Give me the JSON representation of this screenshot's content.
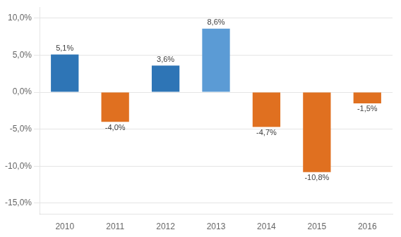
{
  "chart_data": {
    "type": "bar",
    "categories": [
      "2010",
      "2011",
      "2012",
      "2013",
      "2014",
      "2015",
      "2016"
    ],
    "values": [
      5.1,
      -4.0,
      3.6,
      8.6,
      -4.7,
      -10.8,
      -1.5
    ],
    "value_labels": [
      "5,1%",
      "-4,0%",
      "3,6%",
      "8,6%",
      "-4,7%",
      "-10,8%",
      "-1,5%"
    ],
    "colors": [
      "#2E75B6",
      "#E07020",
      "#2E75B6",
      "#5B9BD5",
      "#E07020",
      "#E07020",
      "#E07020"
    ],
    "ylim": [
      -16.5,
      11.5
    ],
    "yticks": [
      {
        "value": -15,
        "label": "-15,0%"
      },
      {
        "value": -10,
        "label": "-10,0%"
      },
      {
        "value": -5,
        "label": "-5,0%"
      },
      {
        "value": 0,
        "label": "0,0%"
      },
      {
        "value": 5,
        "label": "5,0%"
      },
      {
        "value": 10,
        "label": "10,0%"
      }
    ],
    "grid": true,
    "data_labels": true
  }
}
